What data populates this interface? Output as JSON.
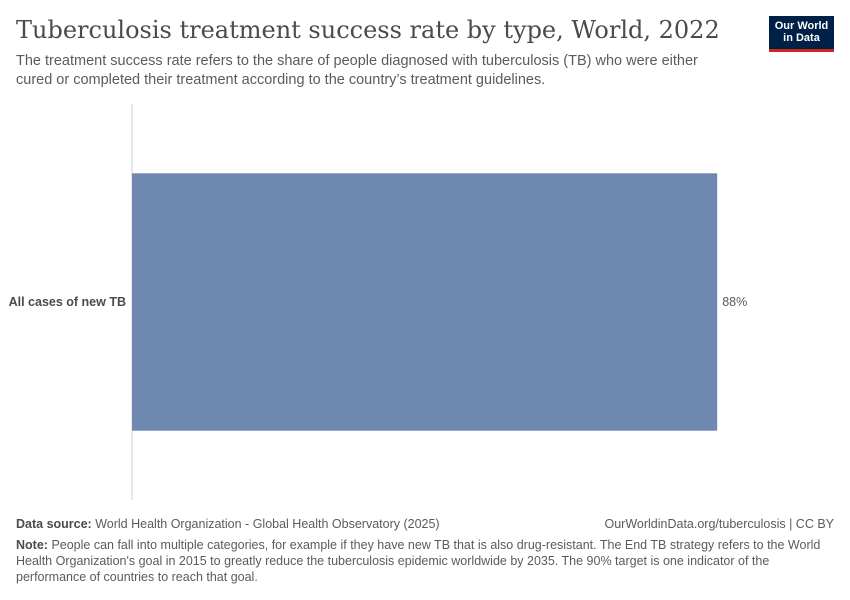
{
  "header": {
    "title": "Tuberculosis treatment success rate by type, World, 2022",
    "subtitle": "The treatment success rate refers to the share of people diagnosed with tuberculosis (TB) who were either cured or completed their treatment according to the country’s treatment guidelines.",
    "logo_line1": "Our World",
    "logo_line2": "in Data"
  },
  "chart_data": {
    "type": "bar",
    "orientation": "horizontal",
    "categories": [
      "All cases of new TB"
    ],
    "values": [
      88
    ],
    "value_labels": [
      "88%"
    ],
    "xlim": [
      0,
      100
    ],
    "grid": false,
    "colors": {
      "bar": "#6f88b0",
      "axis": "#d0d0d0"
    }
  },
  "footer": {
    "source_label": "Data source:",
    "source_text": "World Health Organization - Global Health Observatory (2025)",
    "url_text": "OurWorldinData.org/tuberculosis | CC BY",
    "note_label": "Note:",
    "note_text": "People can fall into multiple categories, for example if they have new TB that is also drug-resistant. The End TB strategy refers to the World Health Organization's goal in 2015 to greatly reduce the tuberculosis epidemic worldwide by 2035. The 90% target is one indicator of the performance of countries to reach that goal."
  }
}
